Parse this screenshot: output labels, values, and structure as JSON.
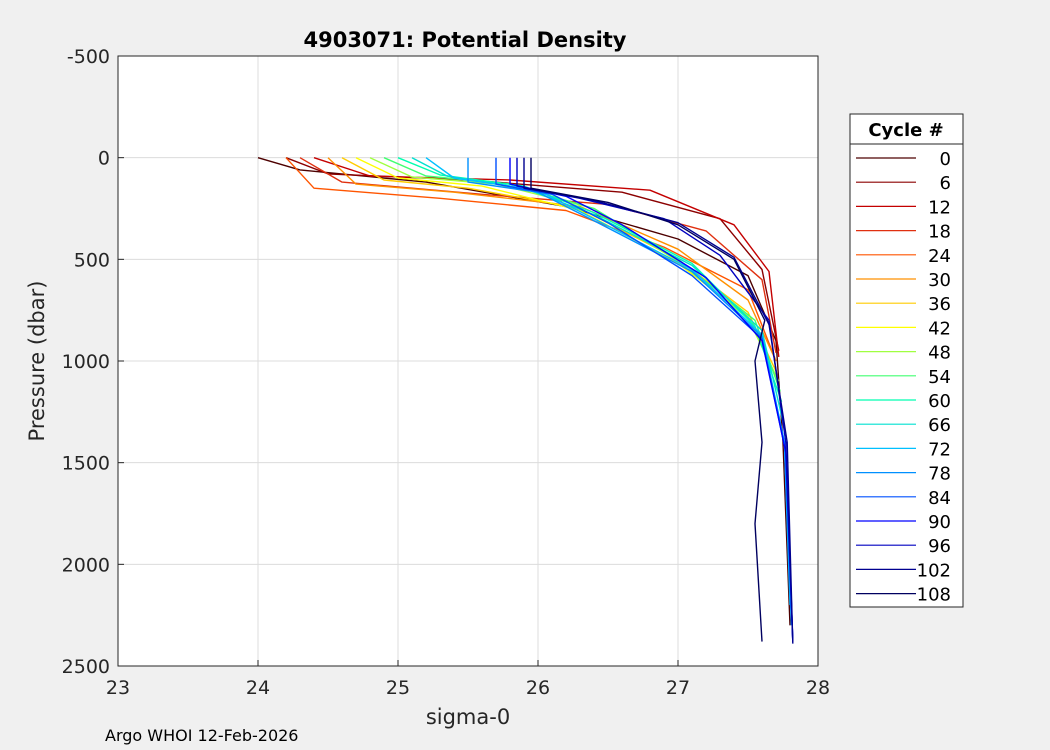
{
  "chart_data": {
    "type": "line",
    "title": "4903071: Potential Density",
    "xlabel": "sigma-0",
    "ylabel": "Pressure (dbar)",
    "xlim": [
      23,
      28
    ],
    "ylim": [
      -500,
      2500
    ],
    "y_reversed": true,
    "grid": true,
    "x_ticks": [
      "23",
      "24",
      "25",
      "26",
      "27",
      "28"
    ],
    "y_ticks": [
      "-500",
      "0",
      "500",
      "1000",
      "1500",
      "2000",
      "2500"
    ],
    "legend": {
      "title": "Cycle #",
      "placement": "outside-right",
      "entries": [
        "0",
        "6",
        "12",
        "18",
        "24",
        "30",
        "36",
        "42",
        "48",
        "54",
        "60",
        "66",
        "72",
        "78",
        "84",
        "90",
        "96",
        "102",
        "108"
      ],
      "colors": [
        "#4d0000",
        "#8b0000",
        "#c40000",
        "#e03010",
        "#ff5500",
        "#ff9000",
        "#ffcc00",
        "#ffff00",
        "#a0ff40",
        "#40ff70",
        "#00ffb0",
        "#00e0d0",
        "#00c0ff",
        "#0090ff",
        "#0050ff",
        "#0000ff",
        "#0000c0",
        "#000090",
        "#000060"
      ]
    },
    "series": [
      {
        "name": "0",
        "color": "#4d0000",
        "x": [
          24.0,
          24.3,
          25.2,
          26.2,
          27.0,
          27.5,
          27.7,
          27.75,
          27.8
        ],
        "y": [
          0,
          60,
          120,
          240,
          400,
          580,
          900,
          1400,
          2300
        ]
      },
      {
        "name": "6",
        "color": "#8b0000",
        "x": [
          24.2,
          24.5,
          25.5,
          26.6,
          27.3,
          27.6,
          27.72
        ],
        "y": [
          0,
          80,
          110,
          170,
          300,
          550,
          950
        ]
      },
      {
        "name": "12",
        "color": "#c40000",
        "x": [
          24.4,
          24.8,
          25.8,
          26.8,
          27.4,
          27.65,
          27.72
        ],
        "y": [
          0,
          90,
          110,
          160,
          330,
          560,
          980
        ]
      },
      {
        "name": "18",
        "color": "#e03010",
        "x": [
          24.3,
          24.6,
          25.6,
          26.5,
          27.2,
          27.6,
          27.7
        ],
        "y": [
          0,
          120,
          180,
          230,
          360,
          600,
          960
        ]
      },
      {
        "name": "24",
        "color": "#ff5500",
        "x": [
          24.2,
          24.4,
          25.3,
          26.2,
          26.9,
          27.5,
          27.7
        ],
        "y": [
          0,
          150,
          200,
          260,
          440,
          650,
          1000
        ]
      },
      {
        "name": "30",
        "color": "#ff9000",
        "x": [
          24.5,
          24.7,
          25.4,
          26.3,
          27.0,
          27.5,
          27.7
        ],
        "y": [
          0,
          130,
          170,
          240,
          450,
          700,
          1000
        ]
      },
      {
        "name": "36",
        "color": "#ffcc00",
        "x": [
          24.6,
          24.9,
          25.5,
          26.3,
          27.0,
          27.5,
          27.7
        ],
        "y": [
          0,
          110,
          150,
          250,
          500,
          760,
          1050
        ]
      },
      {
        "name": "42",
        "color": "#ffff00",
        "x": [
          24.7,
          25.0,
          25.6,
          26.3,
          27.0,
          27.5,
          27.7
        ],
        "y": [
          0,
          100,
          140,
          260,
          520,
          780,
          1080
        ]
      },
      {
        "name": "48",
        "color": "#a0ff40",
        "x": [
          24.8,
          25.1,
          25.7,
          26.4,
          27.0,
          27.5,
          27.72
        ],
        "y": [
          0,
          95,
          130,
          250,
          510,
          790,
          1100
        ]
      },
      {
        "name": "54",
        "color": "#40ff70",
        "x": [
          24.9,
          25.2,
          25.8,
          26.4,
          27.0,
          27.55,
          27.73
        ],
        "y": [
          0,
          90,
          130,
          250,
          500,
          800,
          1150
        ]
      },
      {
        "name": "60",
        "color": "#00ffb0",
        "x": [
          25.0,
          25.3,
          25.9,
          26.4,
          27.1,
          27.55,
          27.74
        ],
        "y": [
          0,
          85,
          140,
          270,
          520,
          830,
          1200
        ]
      },
      {
        "name": "66",
        "color": "#00e0d0",
        "x": [
          25.1,
          25.35,
          25.9,
          26.4,
          27.1,
          27.6,
          27.75
        ],
        "y": [
          0,
          90,
          150,
          280,
          530,
          850,
          1300
        ]
      },
      {
        "name": "72",
        "color": "#00c0ff",
        "x": [
          25.2,
          25.4,
          26.0,
          26.4,
          27.1,
          27.6,
          27.76,
          27.8
        ],
        "y": [
          0,
          100,
          160,
          300,
          550,
          870,
          1400,
          2200
        ]
      },
      {
        "name": "78",
        "color": "#0090ff",
        "x": [
          25.5,
          25.5,
          26.0,
          26.4,
          27.1,
          27.6,
          27.76,
          27.81
        ],
        "y": [
          0,
          120,
          170,
          310,
          560,
          880,
          1400,
          2300
        ]
      },
      {
        "name": "84",
        "color": "#0050ff",
        "x": [
          25.7,
          25.7,
          26.1,
          26.5,
          27.1,
          27.6,
          27.77,
          27.82
        ],
        "y": [
          0,
          130,
          180,
          320,
          580,
          890,
          1450,
          2380
        ]
      },
      {
        "name": "90",
        "color": "#0000ff",
        "x": [
          25.8,
          25.8,
          26.2,
          26.6,
          27.2,
          27.6,
          27.77,
          27.82
        ],
        "y": [
          0,
          130,
          190,
          330,
          590,
          900,
          1450,
          2380
        ]
      },
      {
        "name": "96",
        "color": "#0000c0",
        "x": [
          25.85,
          25.85,
          26.3,
          26.9,
          27.3,
          27.65,
          27.77,
          27.82
        ],
        "y": [
          0,
          140,
          200,
          300,
          480,
          800,
          1400,
          2380
        ]
      },
      {
        "name": "102",
        "color": "#000090",
        "x": [
          25.9,
          25.9,
          26.4,
          27.0,
          27.4,
          27.65,
          27.78,
          27.82
        ],
        "y": [
          0,
          150,
          210,
          320,
          490,
          820,
          1400,
          2390
        ]
      },
      {
        "name": "108",
        "color": "#000060",
        "x": [
          25.95,
          25.95,
          26.5,
          27.0,
          27.4,
          27.62,
          27.55,
          27.6,
          27.55,
          27.6
        ],
        "y": [
          0,
          150,
          220,
          330,
          500,
          800,
          1000,
          1400,
          1800,
          2380
        ]
      }
    ]
  },
  "footer": {
    "text": "Argo WHOI 12-Feb-2026"
  }
}
